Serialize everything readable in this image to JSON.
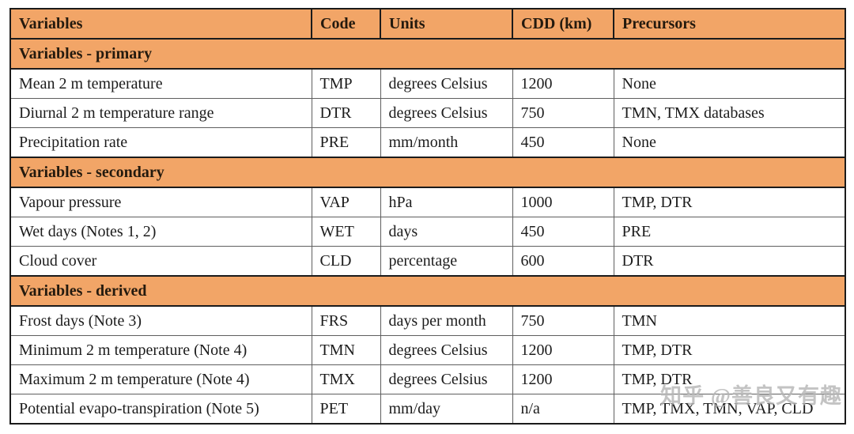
{
  "watermark": {
    "text": "知乎 @善良又有趣"
  },
  "colors": {
    "section_bg": "#F2A567",
    "border_dark": "#1b1b1b",
    "border_light": "#5f5f5f",
    "text": "#1c1c1c"
  },
  "table": {
    "columns": [
      "Variables",
      "Code",
      "Units",
      "CDD (km)",
      "Precursors"
    ],
    "sections": [
      {
        "title": "Variables - primary",
        "rows": [
          [
            "Mean 2 m temperature",
            "TMP",
            "degrees Celsius",
            "1200",
            "None"
          ],
          [
            "Diurnal 2 m temperature range",
            "DTR",
            "degrees Celsius",
            "750",
            "TMN, TMX databases"
          ],
          [
            "Precipitation rate",
            "PRE",
            "mm/month",
            "450",
            "None"
          ]
        ]
      },
      {
        "title": "Variables - secondary",
        "rows": [
          [
            "Vapour pressure",
            "VAP",
            "hPa",
            "1000",
            "TMP, DTR"
          ],
          [
            "Wet days (Notes 1, 2)",
            "WET",
            "days",
            "450",
            "PRE"
          ],
          [
            "Cloud cover",
            "CLD",
            "percentage",
            "600",
            "DTR"
          ]
        ]
      },
      {
        "title": "Variables - derived",
        "rows": [
          [
            "Frost days (Note 3)",
            "FRS",
            "days per month",
            "750",
            "TMN"
          ],
          [
            "Minimum 2 m temperature (Note 4)",
            "TMN",
            "degrees Celsius",
            "1200",
            "TMP, DTR"
          ],
          [
            "Maximum 2 m temperature (Note 4)",
            "TMX",
            "degrees Celsius",
            "1200",
            "TMP, DTR"
          ],
          [
            "Potential evapo-transpiration (Note 5)",
            "PET",
            "mm/day",
            "n/a",
            "TMP, TMX, TMN, VAP, CLD"
          ]
        ]
      }
    ]
  }
}
